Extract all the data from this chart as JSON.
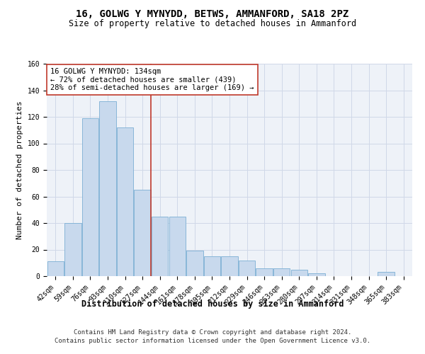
{
  "title": "16, GOLWG Y MYNYDD, BETWS, AMMANFORD, SA18 2PZ",
  "subtitle": "Size of property relative to detached houses in Ammanford",
  "xlabel": "Distribution of detached houses by size in Ammanford",
  "ylabel": "Number of detached properties",
  "categories": [
    "42sqm",
    "59sqm",
    "76sqm",
    "93sqm",
    "110sqm",
    "127sqm",
    "144sqm",
    "161sqm",
    "178sqm",
    "195sqm",
    "212sqm",
    "229sqm",
    "246sqm",
    "263sqm",
    "280sqm",
    "297sqm",
    "314sqm",
    "331sqm",
    "348sqm",
    "365sqm",
    "383sqm"
  ],
  "values": [
    11,
    40,
    119,
    132,
    112,
    65,
    45,
    45,
    19,
    15,
    15,
    12,
    6,
    6,
    5,
    2,
    0,
    0,
    0,
    3,
    0
  ],
  "bar_color": "#c8d9ed",
  "bar_edge_color": "#7bafd4",
  "vline_index": 6,
  "vline_color": "#c0392b",
  "annotation_line1": "16 GOLWG Y MYNYDD: 134sqm",
  "annotation_line2": "← 72% of detached houses are smaller (439)",
  "annotation_line3": "28% of semi-detached houses are larger (169) →",
  "annotation_box_color": "#ffffff",
  "annotation_box_edge": "#c0392b",
  "ylim": [
    0,
    160
  ],
  "yticks": [
    0,
    20,
    40,
    60,
    80,
    100,
    120,
    140,
    160
  ],
  "grid_color": "#d0d8e8",
  "background_color": "#eef2f8",
  "footer_line1": "Contains HM Land Registry data © Crown copyright and database right 2024.",
  "footer_line2": "Contains public sector information licensed under the Open Government Licence v3.0.",
  "title_fontsize": 10,
  "subtitle_fontsize": 8.5,
  "xlabel_fontsize": 8.5,
  "ylabel_fontsize": 8,
  "tick_fontsize": 7,
  "annotation_fontsize": 7.5,
  "footer_fontsize": 6.5
}
